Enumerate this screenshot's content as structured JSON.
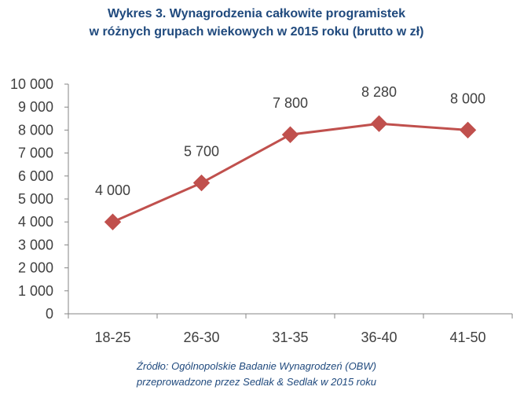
{
  "chart_data": {
    "type": "line",
    "title": [
      "Wykres 3. Wynagrodzenia całkowite programistek",
      "w różnych grupach wiekowych w 2015 roku (brutto w zł)"
    ],
    "categories": [
      "18-25",
      "26-30",
      "31-35",
      "36-40",
      "41-50"
    ],
    "series": [
      {
        "values": [
          4000,
          5700,
          7800,
          8280,
          8000
        ],
        "data_labels": [
          "4 000",
          "5 700",
          "7 800",
          "8 280",
          "8 000"
        ],
        "color": "#c0504d",
        "marker": "diamond"
      }
    ],
    "ylim": [
      0,
      10000
    ],
    "yticks": [
      0,
      1000,
      2000,
      3000,
      4000,
      5000,
      6000,
      7000,
      8000,
      9000,
      10000
    ],
    "ytick_labels": [
      "0",
      "1 000",
      "2 000",
      "3 000",
      "4 000",
      "5 000",
      "6 000",
      "7 000",
      "8 000",
      "9 000",
      "10 000"
    ],
    "xlabel": "",
    "ylabel": "",
    "grid": false,
    "legend": "none"
  },
  "source": [
    "Źródło: Ogólnopolskie Badanie Wynagrodzeń (OBW)",
    "przeprowadzone przez Sedlak & Sedlak w 2015 roku"
  ],
  "colors": {
    "title": "#1f497d",
    "source": "#1f497d",
    "axis": "#868686",
    "text": "#404040"
  }
}
